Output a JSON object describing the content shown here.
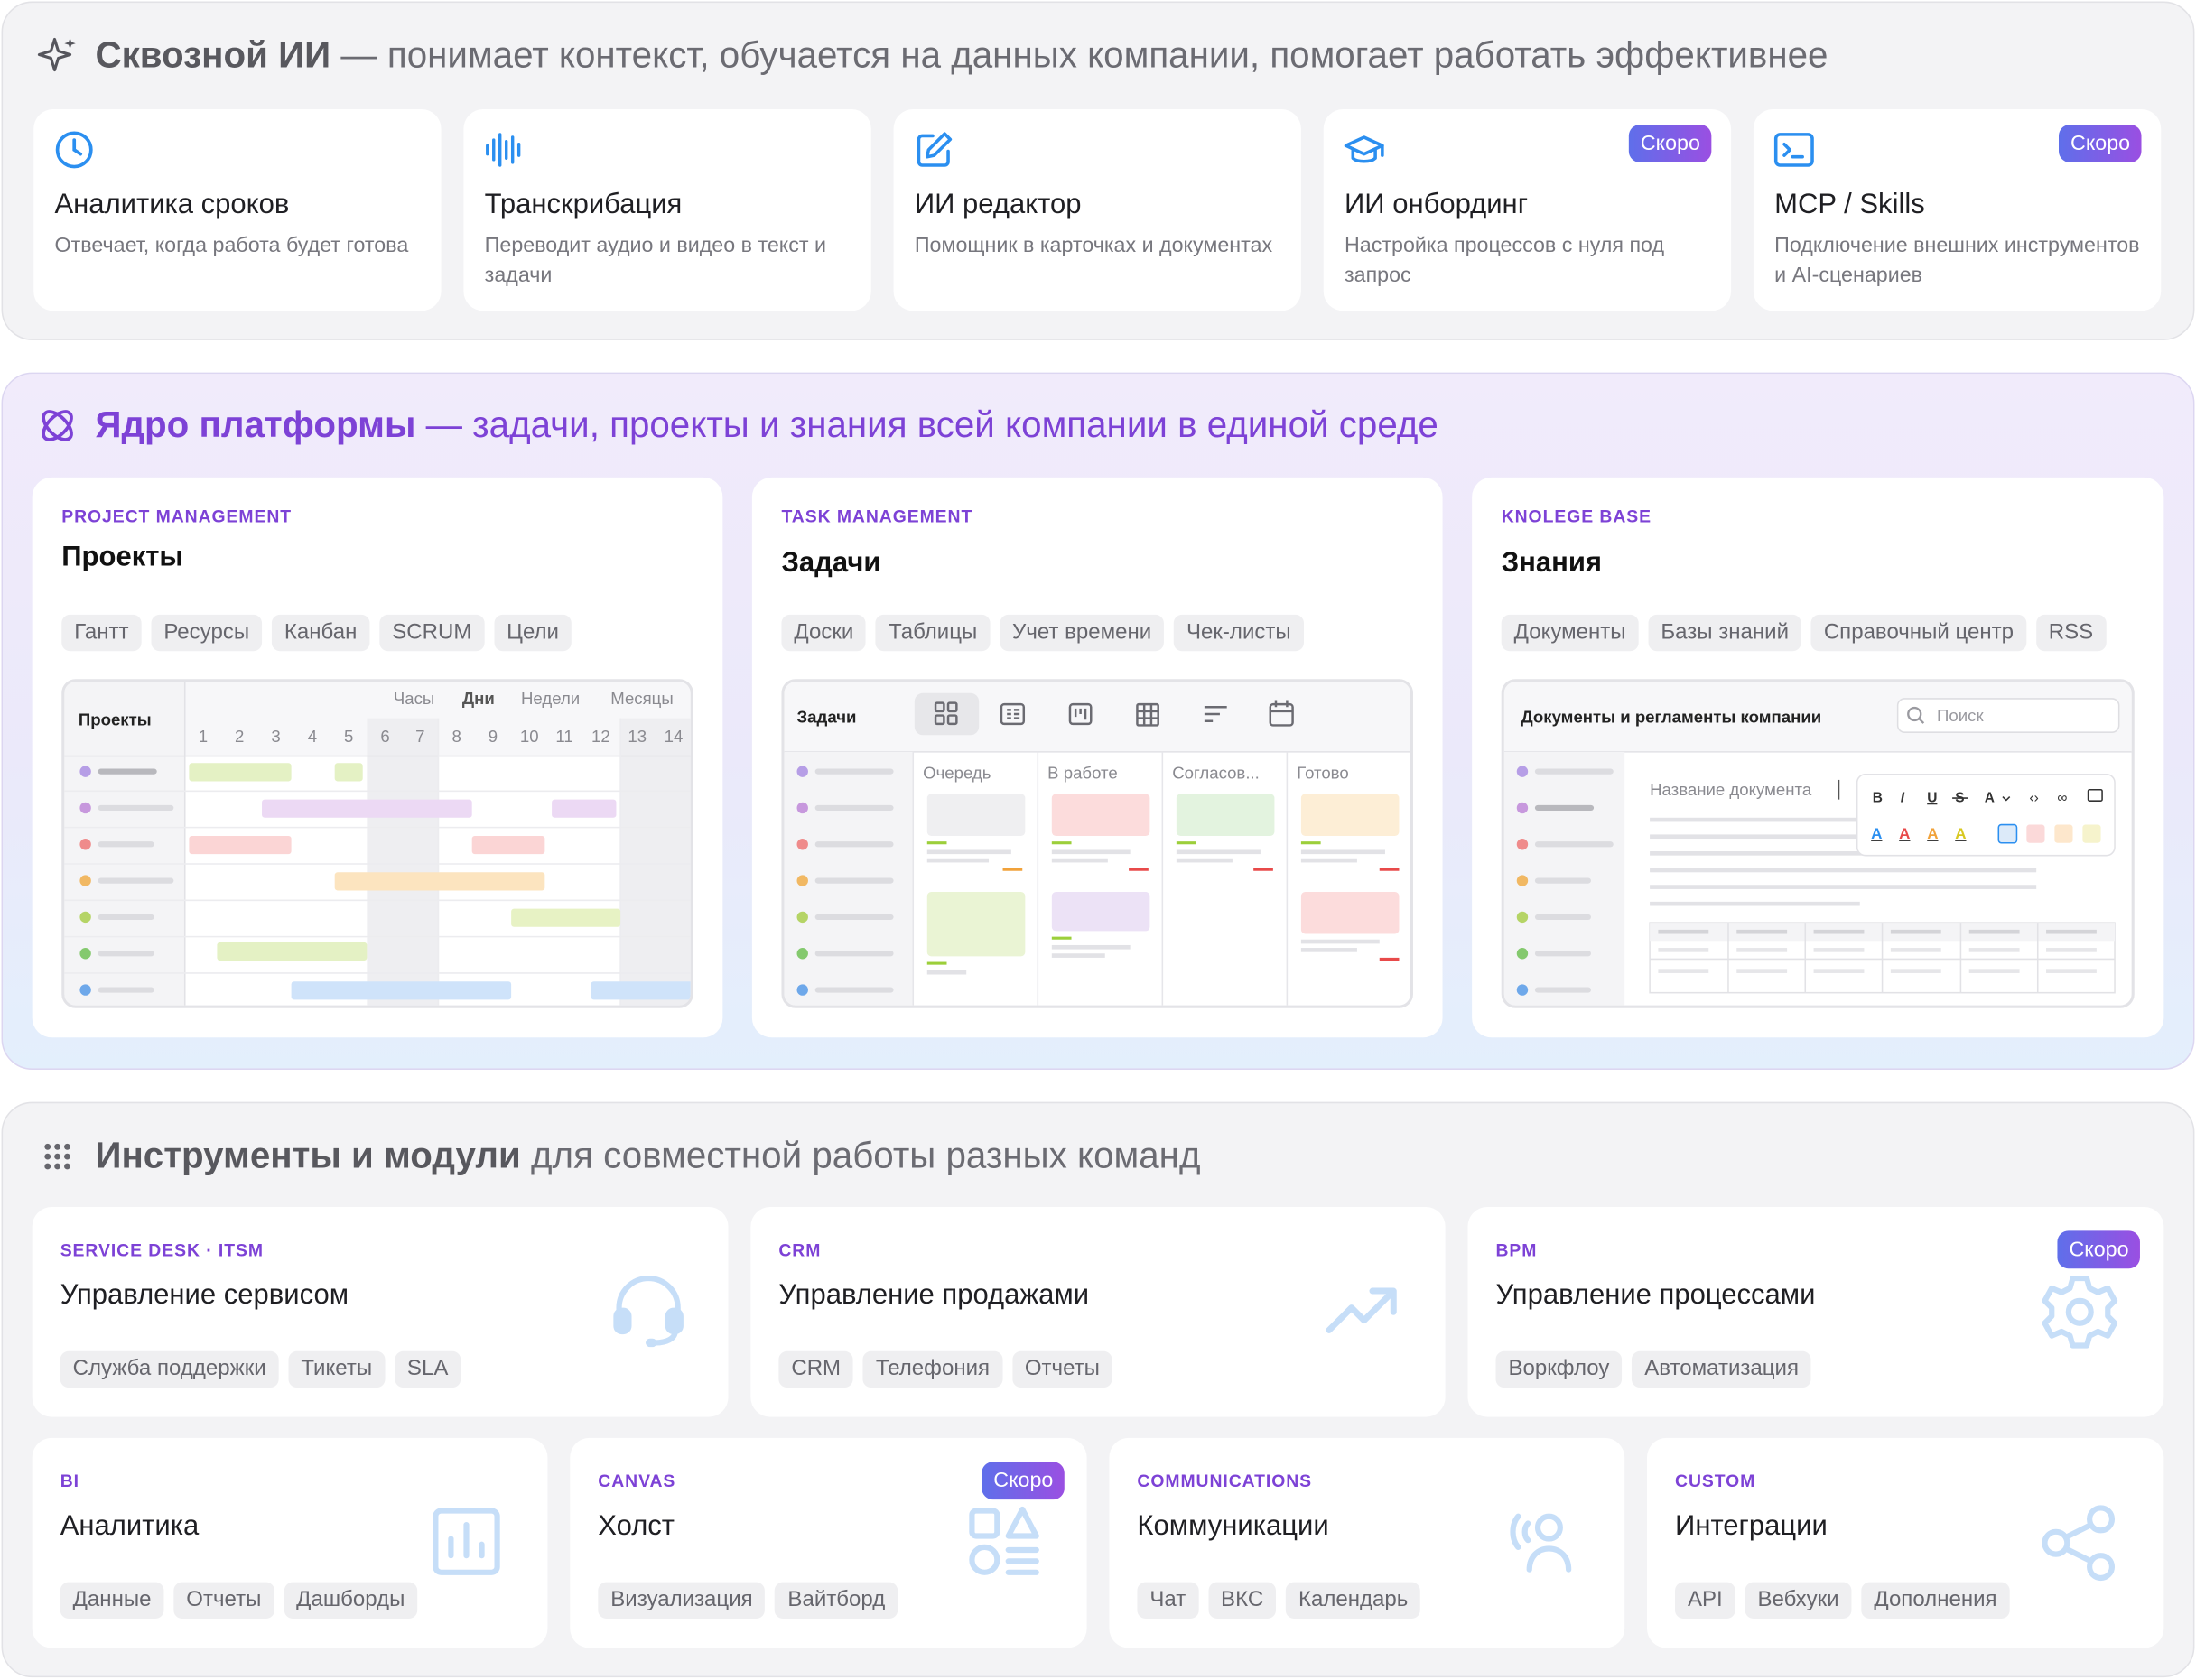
{
  "ai": {
    "title_bold": "Сквозной ИИ",
    "title_rest": "— понимает контекст, обучается на данных компании, помогает работать эффективнее",
    "cards": [
      {
        "icon": "clock-icon",
        "title": "Аналитика сроков",
        "desc": "Отвечает, когда работа будет готова"
      },
      {
        "icon": "audio-wave-icon",
        "title": "Транскрибация",
        "desc": "Переводит аудио и видео в текст и задачи"
      },
      {
        "icon": "edit-icon",
        "title": "ИИ редактор",
        "desc": "Помощник в карточках и документах"
      },
      {
        "icon": "graduation-cap-icon",
        "title": "ИИ онбординг",
        "desc": "Настройка процессов с нуля под запрос",
        "badge": "Скоро"
      },
      {
        "icon": "terminal-icon",
        "title": "MCP / Skills",
        "desc": "Подключение внешних инструментов и AI-сценариев",
        "badge": "Скоро"
      }
    ]
  },
  "core": {
    "title_bold": "Ядро платформы",
    "title_rest": "— задачи, проекты и знания всей компании в единой среде",
    "projects": {
      "kicker": "PROJECT MANAGEMENT",
      "title": "Проекты",
      "chips": [
        "Гантт",
        "Ресурсы",
        "Канбан",
        "SCRUM",
        "Цели"
      ],
      "mock_title": "Проекты",
      "scales": [
        "Часы",
        "Дни",
        "Недели",
        "Месяцы"
      ],
      "days": [
        "1",
        "2",
        "3",
        "4",
        "5",
        "6",
        "7",
        "8",
        "9",
        "10",
        "11",
        "12",
        "13",
        "14"
      ]
    },
    "tasks": {
      "kicker": "TASK MANAGEMENT",
      "title": "Задачи",
      "chips": [
        "Доски",
        "Таблицы",
        "Учет времени",
        "Чек-листы"
      ],
      "mock_title": "Задачи",
      "columns": [
        "Очередь",
        "В работе",
        "Согласов...",
        "Готово"
      ]
    },
    "knowledge": {
      "kicker": "KNOLEGE BASE",
      "title": "Знания",
      "chips": [
        "Документы",
        "Базы знаний",
        "Справочный центр",
        "RSS"
      ],
      "mock_title": "Документы и регламенты компании",
      "search_placeholder": "Поиск",
      "doc_title": "Название документа"
    }
  },
  "tools": {
    "title_bold": "Инструменты и модули",
    "title_rest": "для совместной работы разных команд",
    "cards": [
      {
        "kicker": "SERVICE DESK · ITSM",
        "title": "Управление сервисом",
        "chips": [
          "Служба поддержки",
          "Тикеты",
          "SLA"
        ],
        "icon": "headset-icon"
      },
      {
        "kicker": "CRM",
        "title": "Управление продажами",
        "chips": [
          "CRM",
          "Телефония",
          "Отчеты"
        ],
        "icon": "trending-up-icon"
      },
      {
        "kicker": "BPM",
        "title": "Управление процессами",
        "chips": [
          "Воркфлоу",
          "Автоматизация"
        ],
        "icon": "gear-icon",
        "badge": "Скоро"
      },
      {
        "kicker": "BI",
        "title": "Аналитика",
        "chips": [
          "Данные",
          "Отчеты",
          "Дашборды"
        ],
        "icon": "bar-chart-icon"
      },
      {
        "kicker": "CANVAS",
        "title": "Холст",
        "chips": [
          "Визуализация",
          "Вайтборд"
        ],
        "icon": "shapes-icon",
        "badge": "Скоро"
      },
      {
        "kicker": "COMMUNICATIONS",
        "title": "Коммуникации",
        "chips": [
          "Чат",
          "ВКС",
          "Календарь"
        ],
        "icon": "user-broadcast-icon"
      },
      {
        "kicker": "CUSTOM",
        "title": "Интеграции",
        "chips": [
          "API",
          "Вебхуки",
          "Дополнения"
        ],
        "icon": "share-icon"
      }
    ]
  },
  "colors": {
    "accent": "#7d42d6",
    "blue": "#2b8ff0",
    "badge_from": "#5f6fea",
    "badge_to": "#9a4fe2"
  }
}
